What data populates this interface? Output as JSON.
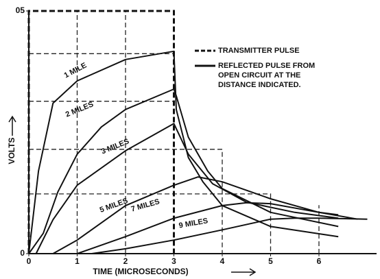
{
  "chart_data": {
    "type": "line",
    "xlabel": "TIME (MICROSECONDS)",
    "ylabel": "VOLTS",
    "xlim": [
      0,
      7.2
    ],
    "ylim": [
      0,
      0.5
    ],
    "xticks": [
      0,
      1,
      2,
      3,
      4,
      5,
      6
    ],
    "yticks": [
      0,
      {
        "value": 0.5,
        "label": "05"
      }
    ],
    "pulse": {
      "x": [
        0,
        0,
        3,
        3
      ],
      "y": [
        0,
        0.5,
        0.5,
        0
      ]
    },
    "reference_lines": [
      {
        "x": [
          0,
          3
        ],
        "y": [
          0.412,
          0.412
        ]
      },
      {
        "x": [
          0,
          3
        ],
        "y": [
          0.314,
          0.314
        ]
      },
      {
        "x": [
          0,
          4,
          4
        ],
        "y": [
          0.215,
          0.215,
          0
        ]
      },
      {
        "x": [
          0,
          5,
          5
        ],
        "y": [
          0.123,
          0.123,
          0
        ]
      },
      {
        "x": [
          1,
          1
        ],
        "y": [
          0,
          0.5
        ]
      },
      {
        "x": [
          2,
          2
        ],
        "y": [
          0,
          0.5
        ]
      },
      {
        "x": [
          6,
          6
        ],
        "y": [
          0,
          0.1
        ]
      }
    ],
    "legend": [
      {
        "style": "dashed",
        "lines": [
          "TRANSMITTER PULSE"
        ]
      },
      {
        "style": "solid",
        "lines": [
          "REFLECTED PULSE FROM",
          "OPEN CIRCUIT AT THE",
          "DISTANCE INDICATED."
        ]
      }
    ],
    "series": [
      {
        "name": "1 MILE",
        "color": "#111111",
        "x": [
          0,
          0.2,
          0.5,
          1,
          2,
          3,
          3.05,
          3.3,
          3.6,
          4,
          5,
          6.4
        ],
        "y": [
          0,
          0.17,
          0.31,
          0.356,
          0.4,
          0.417,
          0.297,
          0.198,
          0.148,
          0.099,
          0.056,
          0.035
        ]
      },
      {
        "name": "2 MILES",
        "color": "#111111",
        "x": [
          0,
          0.3,
          0.6,
          1,
          1.5,
          2,
          3,
          3.05,
          3.3,
          3.7,
          4,
          5,
          6.4
        ],
        "y": [
          0,
          0.042,
          0.127,
          0.205,
          0.261,
          0.297,
          0.339,
          0.325,
          0.24,
          0.17,
          0.134,
          0.085,
          0.056
        ]
      },
      {
        "name": "3 MILES",
        "color": "#111111",
        "x": [
          0.15,
          0.5,
          1,
          2,
          3,
          3.3,
          3.8,
          4.5,
          5.5,
          6.4
        ],
        "y": [
          0,
          0.07,
          0.141,
          0.212,
          0.268,
          0.205,
          0.144,
          0.106,
          0.085,
          0.073
        ]
      },
      {
        "name": "5 MILES",
        "color": "#111111",
        "x": [
          0.5,
          1,
          2,
          3,
          3.5,
          4,
          5,
          6,
          6.4
        ],
        "y": [
          0,
          0.028,
          0.099,
          0.141,
          0.158,
          0.148,
          0.113,
          0.085,
          0.08
        ]
      },
      {
        "name": "7 MILES",
        "color": "#111111",
        "x": [
          1,
          2,
          3,
          4,
          4.5,
          5,
          6,
          6.8
        ],
        "y": [
          0,
          0.035,
          0.073,
          0.099,
          0.105,
          0.103,
          0.085,
          0.071
        ]
      },
      {
        "name": "9 MILES",
        "color": "#111111",
        "x": [
          1.3,
          2,
          3,
          4,
          5,
          5.5,
          6,
          7
        ],
        "y": [
          0,
          0.01,
          0.028,
          0.049,
          0.071,
          0.073,
          0.073,
          0.071
        ]
      }
    ]
  }
}
